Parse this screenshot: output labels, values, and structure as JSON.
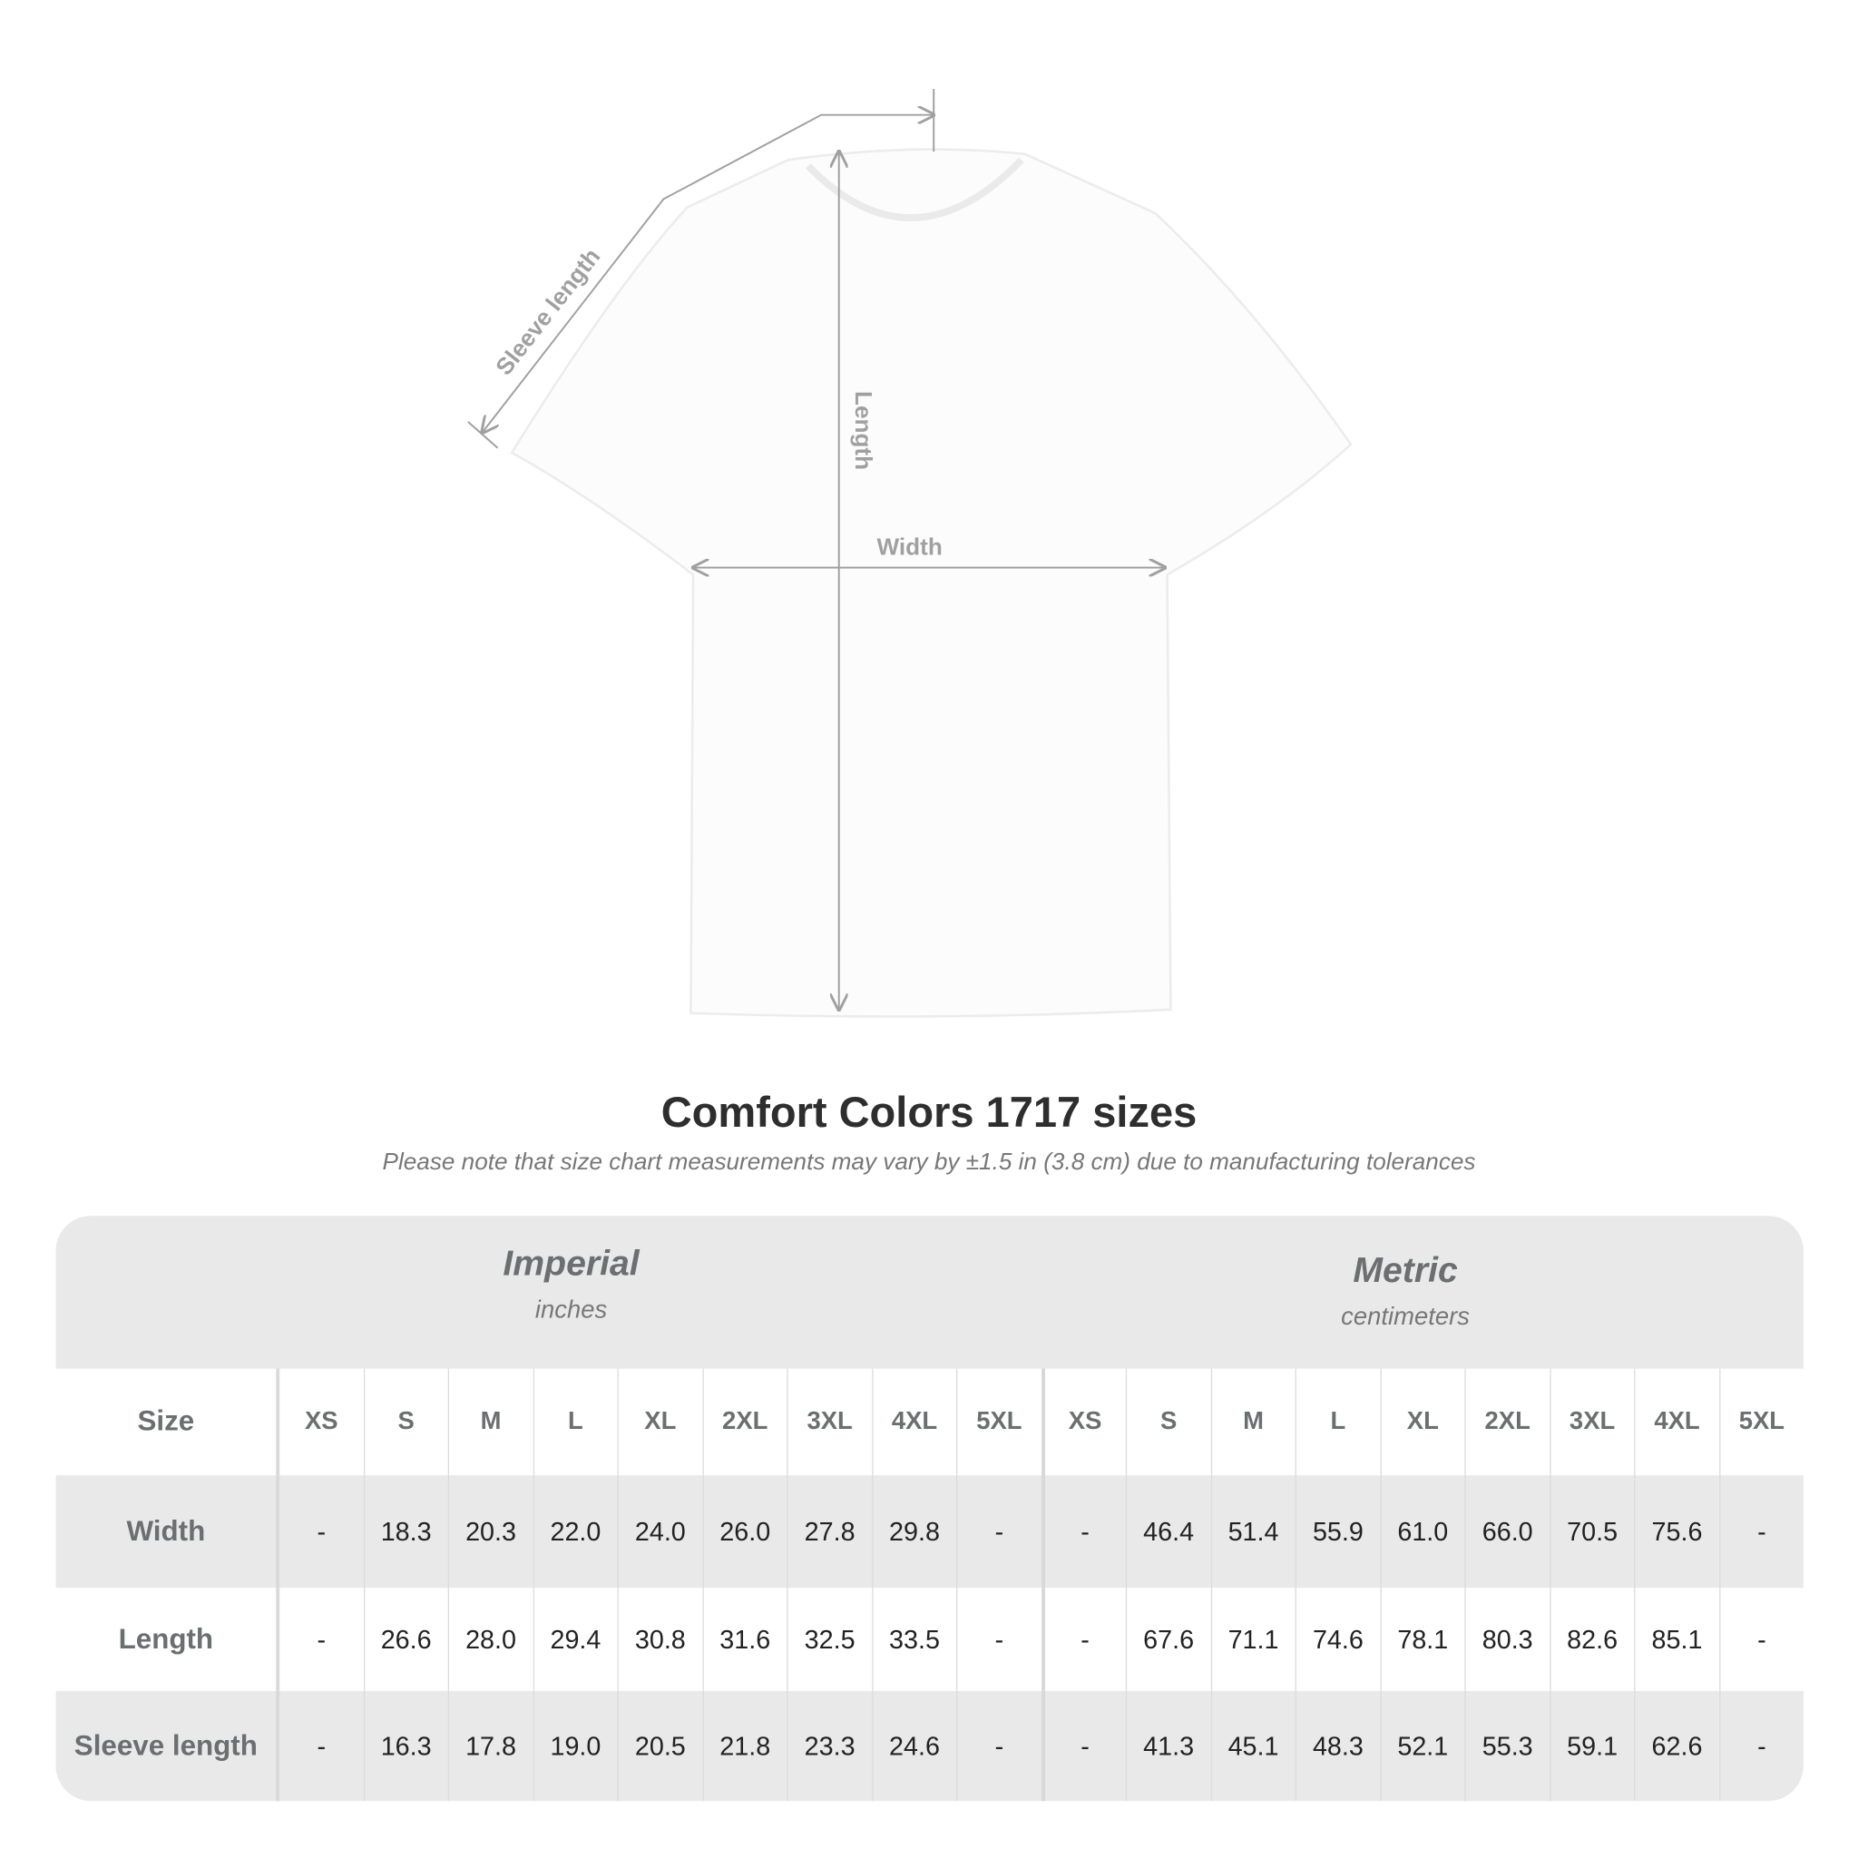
{
  "diagram": {
    "labels": {
      "sleeve": "Sleeve length",
      "length": "Length",
      "width": "Width"
    },
    "line_color": "#a0a0a0"
  },
  "title": "Comfort Colors 1717 sizes",
  "subtitle": "Please note that size chart measurements may vary by ±1.5 in (3.8 cm) due to manufacturing tolerances",
  "table": {
    "imperial": {
      "name": "Imperial",
      "unit": "inches"
    },
    "metric": {
      "name": "Metric",
      "unit": "centimeters"
    },
    "size_label": "Size",
    "sizes": [
      "XS",
      "S",
      "M",
      "L",
      "XL",
      "2XL",
      "3XL",
      "4XL",
      "5XL"
    ],
    "rows": [
      {
        "label": "Width",
        "imperial": [
          "-",
          "18.3",
          "20.3",
          "22.0",
          "24.0",
          "26.0",
          "27.8",
          "29.8",
          "-"
        ],
        "metric": [
          "-",
          "46.4",
          "51.4",
          "55.9",
          "61.0",
          "66.0",
          "70.5",
          "75.6",
          "-"
        ]
      },
      {
        "label": "Length",
        "imperial": [
          "-",
          "26.6",
          "28.0",
          "29.4",
          "30.8",
          "31.6",
          "32.5",
          "33.5",
          "-"
        ],
        "metric": [
          "-",
          "67.6",
          "71.1",
          "74.6",
          "78.1",
          "80.3",
          "82.6",
          "85.1",
          "-"
        ]
      },
      {
        "label": "Sleeve length",
        "imperial": [
          "-",
          "16.3",
          "17.8",
          "19.0",
          "20.5",
          "21.8",
          "23.3",
          "24.6",
          "-"
        ],
        "metric": [
          "-",
          "41.3",
          "45.1",
          "48.3",
          "52.1",
          "55.3",
          "59.1",
          "62.6",
          "-"
        ]
      }
    ]
  }
}
